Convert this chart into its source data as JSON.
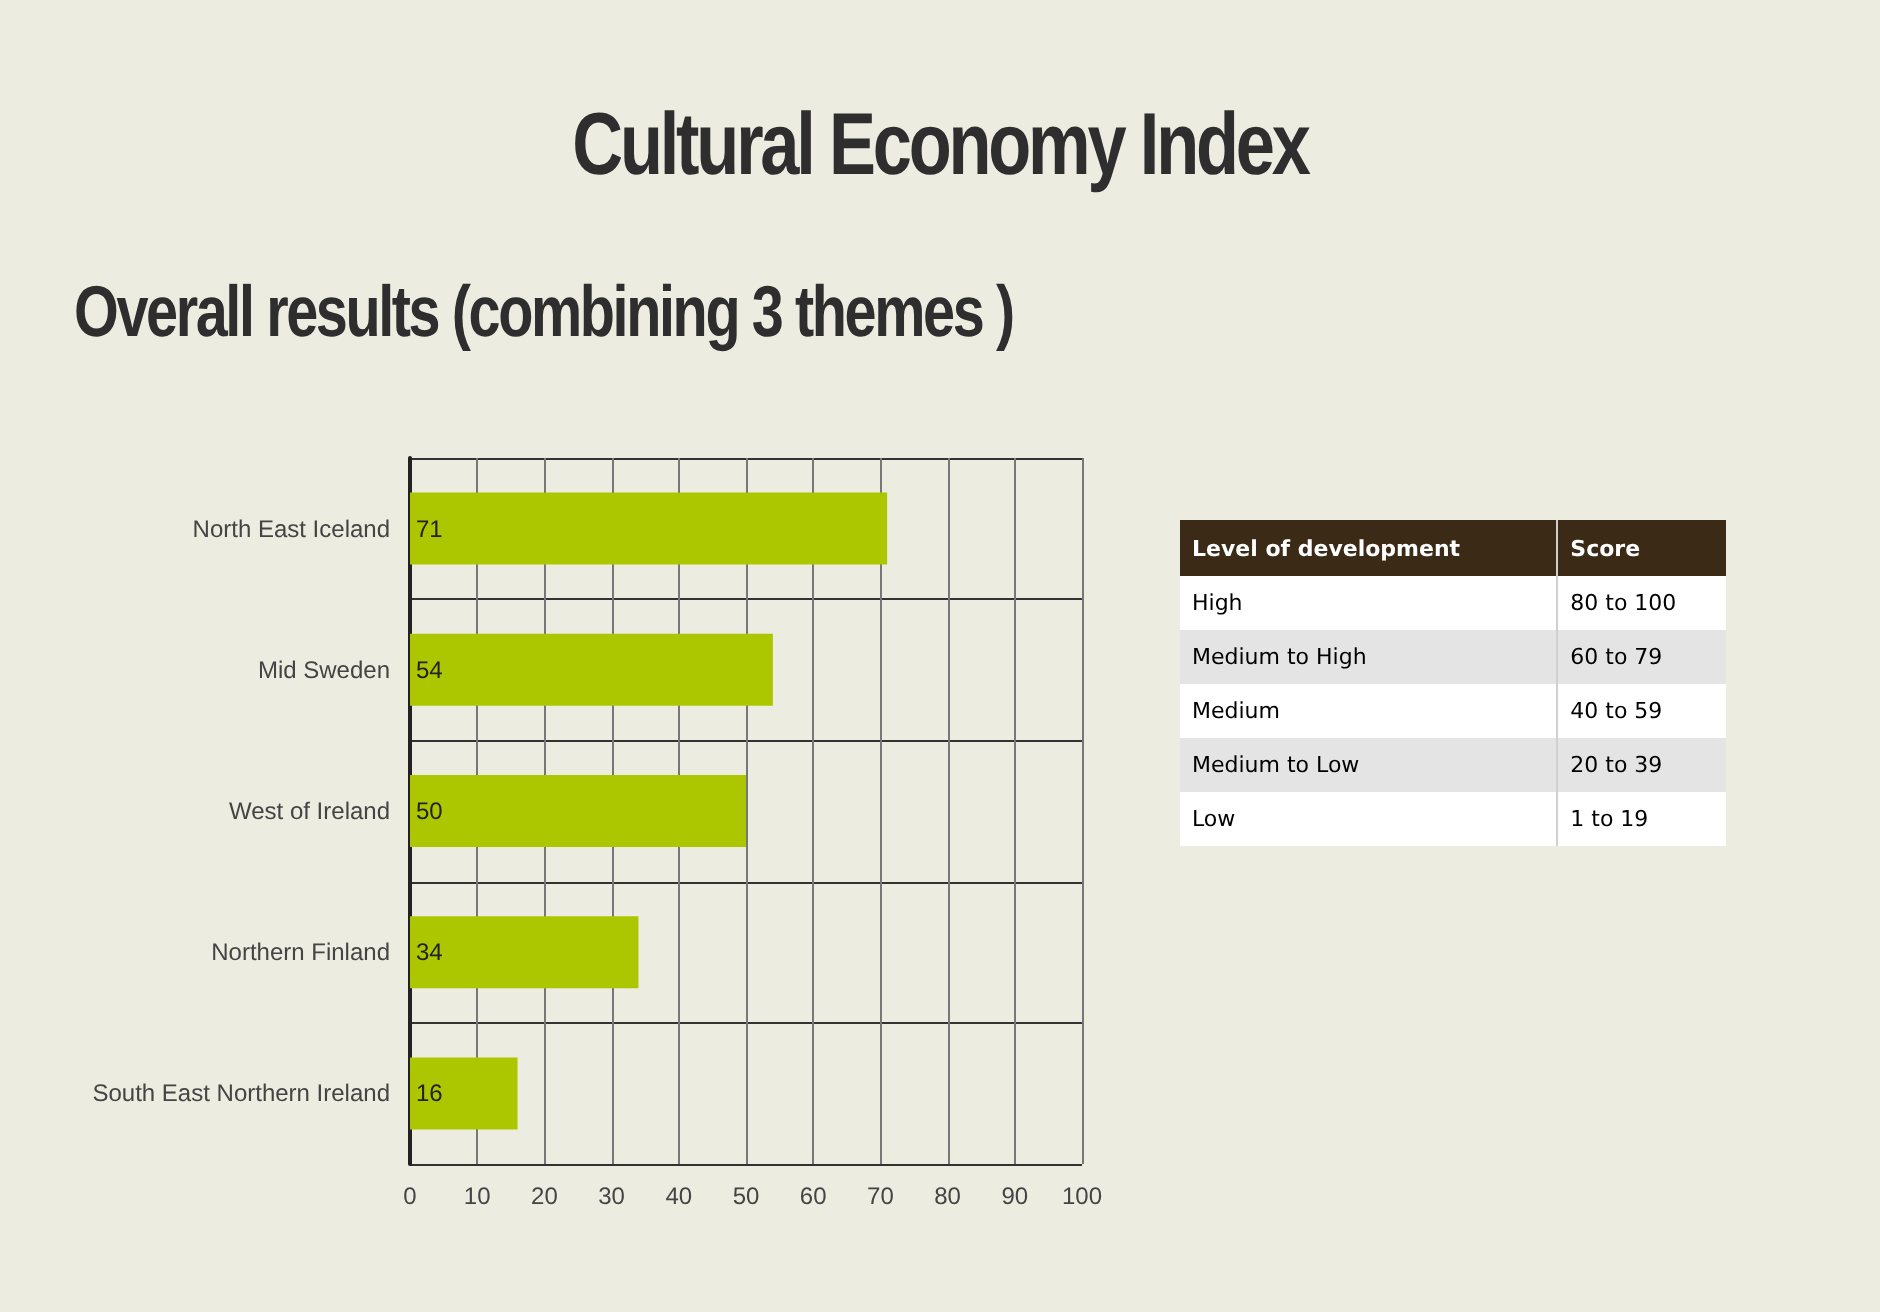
{
  "chart_data": [
    {
      "type": "bar",
      "title": "Cultural Economy Index",
      "subtitle": "Overall results (combining 3 themes )",
      "orientation": "horizontal",
      "categories": [
        "North East Iceland",
        "Mid Sweden",
        "West of Ireland",
        "Northern Finland",
        "South East Northern Ireland"
      ],
      "values": [
        71,
        54,
        50,
        34,
        16
      ],
      "color": "#acc700",
      "xlim": [
        0,
        100
      ],
      "xticks": [
        0,
        10,
        20,
        30,
        40,
        50,
        60,
        70,
        80,
        90,
        100
      ],
      "grid": true,
      "data_labels": true
    },
    {
      "type": "other",
      "annotations": [
        "Level of development",
        "Score",
        "High",
        "80 to 100",
        "Medium to High",
        "60 to 79",
        "Medium",
        "40 to 59",
        "Medium to Low",
        "20 to  39",
        "Low",
        "1 to 19"
      ]
    }
  ]
}
